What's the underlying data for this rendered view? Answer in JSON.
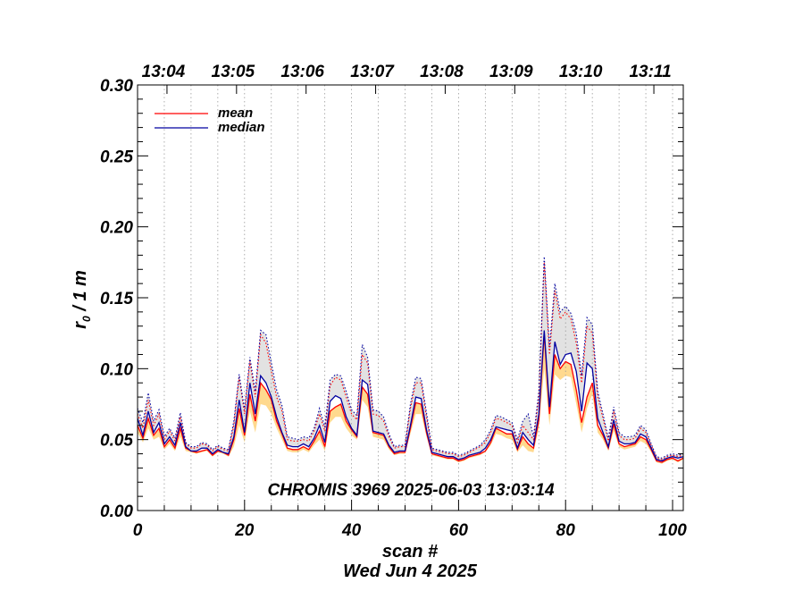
{
  "chart_data": {
    "type": "line",
    "ylabel_main": "r",
    "ylabel_sub": "0",
    "ylabel_rest": " / 1 m",
    "xlabel": "scan #",
    "xlabel2": "Wed Jun  4 2025",
    "annotation": "CHROMIS 3969 2025-06-03 13:03:14",
    "xlim": [
      0,
      102
    ],
    "ylim": [
      0,
      0.3
    ],
    "xticks": [
      0,
      20,
      40,
      60,
      80,
      100
    ],
    "xtick_labels": [
      "0",
      "20",
      "40",
      "60",
      "80",
      "100"
    ],
    "yticks": [
      0,
      0.05,
      0.1,
      0.15,
      0.2,
      0.25,
      0.3
    ],
    "ytick_labels": [
      "0.00",
      "0.05",
      "0.10",
      "0.15",
      "0.20",
      "0.25",
      "0.30"
    ],
    "top_ticks": [
      {
        "x": 5.5,
        "label": "13:04"
      },
      {
        "x": 18.5,
        "label": "13:05"
      },
      {
        "x": 31.5,
        "label": "13:06"
      },
      {
        "x": 44.5,
        "label": "13:07"
      },
      {
        "x": 57.5,
        "label": "13:08"
      },
      {
        "x": 70.5,
        "label": "13:09"
      },
      {
        "x": 83.5,
        "label": "13:10"
      },
      {
        "x": 96.5,
        "label": "13:11"
      }
    ],
    "legend": [
      {
        "label": "mean",
        "color": "#ff0000"
      },
      {
        "label": "median",
        "color": "#0000a0"
      }
    ],
    "x": [
      0,
      1,
      2,
      3,
      4,
      5,
      6,
      7,
      8,
      9,
      10,
      11,
      12,
      13,
      14,
      15,
      16,
      17,
      18,
      19,
      20,
      21,
      22,
      23,
      24,
      25,
      26,
      27,
      28,
      29,
      30,
      31,
      32,
      33,
      34,
      35,
      36,
      37,
      38,
      39,
      40,
      41,
      42,
      43,
      44,
      45,
      46,
      47,
      48,
      49,
      50,
      51,
      52,
      53,
      54,
      55,
      56,
      57,
      58,
      59,
      60,
      61,
      62,
      63,
      64,
      65,
      66,
      67,
      68,
      69,
      70,
      71,
      72,
      73,
      74,
      75,
      76,
      77,
      78,
      79,
      80,
      81,
      82,
      83,
      84,
      85,
      86,
      87,
      88,
      89,
      90,
      91,
      92,
      93,
      94,
      95,
      96,
      97,
      98,
      99,
      100,
      101,
      102
    ],
    "series": [
      {
        "name": "mean",
        "color": "#ff0000",
        "values": [
          0.06,
          0.051,
          0.065,
          0.053,
          0.058,
          0.045,
          0.05,
          0.044,
          0.058,
          0.044,
          0.042,
          0.041,
          0.042,
          0.043,
          0.039,
          0.042,
          0.041,
          0.039,
          0.05,
          0.072,
          0.053,
          0.082,
          0.063,
          0.09,
          0.085,
          0.078,
          0.063,
          0.054,
          0.044,
          0.043,
          0.043,
          0.045,
          0.043,
          0.049,
          0.056,
          0.045,
          0.07,
          0.073,
          0.075,
          0.063,
          0.057,
          0.052,
          0.087,
          0.082,
          0.055,
          0.054,
          0.053,
          0.045,
          0.04,
          0.041,
          0.041,
          0.058,
          0.076,
          0.075,
          0.055,
          0.04,
          0.039,
          0.038,
          0.037,
          0.037,
          0.035,
          0.036,
          0.038,
          0.039,
          0.04,
          0.042,
          0.048,
          0.058,
          0.056,
          0.054,
          0.054,
          0.043,
          0.052,
          0.047,
          0.044,
          0.064,
          0.125,
          0.068,
          0.11,
          0.1,
          0.105,
          0.103,
          0.085,
          0.062,
          0.08,
          0.09,
          0.06,
          0.053,
          0.044,
          0.061,
          0.047,
          0.045,
          0.046,
          0.047,
          0.052,
          0.05,
          0.043,
          0.035,
          0.034,
          0.036,
          0.037,
          0.035,
          0.037
        ]
      },
      {
        "name": "median",
        "color": "#0000a0",
        "values": [
          0.065,
          0.053,
          0.07,
          0.055,
          0.062,
          0.047,
          0.052,
          0.046,
          0.062,
          0.045,
          0.042,
          0.042,
          0.044,
          0.044,
          0.04,
          0.043,
          0.041,
          0.04,
          0.052,
          0.078,
          0.055,
          0.09,
          0.068,
          0.095,
          0.09,
          0.08,
          0.066,
          0.055,
          0.046,
          0.045,
          0.045,
          0.047,
          0.045,
          0.051,
          0.06,
          0.048,
          0.077,
          0.081,
          0.079,
          0.066,
          0.058,
          0.053,
          0.092,
          0.089,
          0.056,
          0.055,
          0.054,
          0.046,
          0.041,
          0.042,
          0.042,
          0.06,
          0.08,
          0.079,
          0.057,
          0.041,
          0.04,
          0.039,
          0.038,
          0.038,
          0.036,
          0.037,
          0.039,
          0.04,
          0.041,
          0.044,
          0.05,
          0.059,
          0.058,
          0.057,
          0.056,
          0.044,
          0.055,
          0.05,
          0.046,
          0.068,
          0.127,
          0.073,
          0.119,
          0.103,
          0.11,
          0.111,
          0.098,
          0.07,
          0.104,
          0.1,
          0.065,
          0.055,
          0.045,
          0.064,
          0.049,
          0.047,
          0.047,
          0.048,
          0.054,
          0.052,
          0.044,
          0.036,
          0.035,
          0.037,
          0.038,
          0.037,
          0.038
        ]
      },
      {
        "name": "mean-upper",
        "color": "#ff0000",
        "values": [
          0.068,
          0.058,
          0.078,
          0.06,
          0.068,
          0.05,
          0.056,
          0.049,
          0.066,
          0.047,
          0.044,
          0.044,
          0.047,
          0.046,
          0.042,
          0.045,
          0.043,
          0.042,
          0.06,
          0.094,
          0.068,
          0.105,
          0.08,
          0.124,
          0.118,
          0.098,
          0.08,
          0.07,
          0.05,
          0.049,
          0.049,
          0.05,
          0.049,
          0.056,
          0.068,
          0.056,
          0.088,
          0.094,
          0.092,
          0.08,
          0.068,
          0.064,
          0.11,
          0.104,
          0.068,
          0.067,
          0.063,
          0.052,
          0.044,
          0.045,
          0.045,
          0.072,
          0.09,
          0.09,
          0.066,
          0.043,
          0.042,
          0.041,
          0.04,
          0.04,
          0.038,
          0.039,
          0.041,
          0.043,
          0.045,
          0.048,
          0.055,
          0.065,
          0.064,
          0.062,
          0.06,
          0.048,
          0.06,
          0.055,
          0.05,
          0.08,
          0.175,
          0.11,
          0.155,
          0.135,
          0.14,
          0.135,
          0.118,
          0.09,
          0.13,
          0.125,
          0.08,
          0.065,
          0.049,
          0.07,
          0.053,
          0.05,
          0.05,
          0.051,
          0.058,
          0.055,
          0.046,
          0.037,
          0.036,
          0.038,
          0.039,
          0.038,
          0.039
        ]
      },
      {
        "name": "median-upper",
        "color": "#0000a0",
        "values": [
          0.072,
          0.062,
          0.083,
          0.063,
          0.071,
          0.052,
          0.058,
          0.051,
          0.069,
          0.048,
          0.045,
          0.045,
          0.048,
          0.047,
          0.043,
          0.046,
          0.044,
          0.043,
          0.063,
          0.096,
          0.071,
          0.108,
          0.084,
          0.127,
          0.124,
          0.104,
          0.085,
          0.074,
          0.052,
          0.051,
          0.05,
          0.052,
          0.051,
          0.058,
          0.072,
          0.059,
          0.092,
          0.096,
          0.095,
          0.084,
          0.071,
          0.067,
          0.117,
          0.108,
          0.071,
          0.07,
          0.066,
          0.054,
          0.045,
          0.046,
          0.046,
          0.075,
          0.094,
          0.093,
          0.069,
          0.044,
          0.043,
          0.042,
          0.041,
          0.041,
          0.039,
          0.04,
          0.042,
          0.044,
          0.046,
          0.05,
          0.057,
          0.067,
          0.066,
          0.064,
          0.062,
          0.05,
          0.063,
          0.068,
          0.052,
          0.084,
          0.179,
          0.115,
          0.16,
          0.14,
          0.144,
          0.139,
          0.125,
          0.095,
          0.136,
          0.131,
          0.084,
          0.068,
          0.051,
          0.073,
          0.055,
          0.052,
          0.052,
          0.053,
          0.06,
          0.057,
          0.047,
          0.038,
          0.037,
          0.039,
          0.04,
          0.039,
          0.04
        ]
      }
    ],
    "band_mean_lower": [
      0.055,
      0.048,
      0.058,
      0.05,
      0.052,
      0.043,
      0.047,
      0.042,
      0.052,
      0.042,
      0.041,
      0.04,
      0.041,
      0.042,
      0.038,
      0.041,
      0.04,
      0.038,
      0.045,
      0.06,
      0.048,
      0.07,
      0.055,
      0.075,
      0.074,
      0.068,
      0.058,
      0.05,
      0.042,
      0.041,
      0.041,
      0.043,
      0.041,
      0.046,
      0.05,
      0.042,
      0.062,
      0.066,
      0.066,
      0.058,
      0.053,
      0.05,
      0.078,
      0.073,
      0.052,
      0.051,
      0.05,
      0.043,
      0.039,
      0.04,
      0.04,
      0.054,
      0.068,
      0.068,
      0.052,
      0.039,
      0.038,
      0.037,
      0.036,
      0.036,
      0.034,
      0.035,
      0.037,
      0.038,
      0.039,
      0.041,
      0.046,
      0.054,
      0.053,
      0.051,
      0.05,
      0.041,
      0.046,
      0.042,
      0.041,
      0.058,
      0.1,
      0.06,
      0.096,
      0.092,
      0.095,
      0.094,
      0.075,
      0.055,
      0.072,
      0.082,
      0.055,
      0.05,
      0.042,
      0.056,
      0.045,
      0.043,
      0.044,
      0.045,
      0.049,
      0.047,
      0.041,
      0.034,
      0.033,
      0.035,
      0.036,
      0.034,
      0.036
    ]
  }
}
